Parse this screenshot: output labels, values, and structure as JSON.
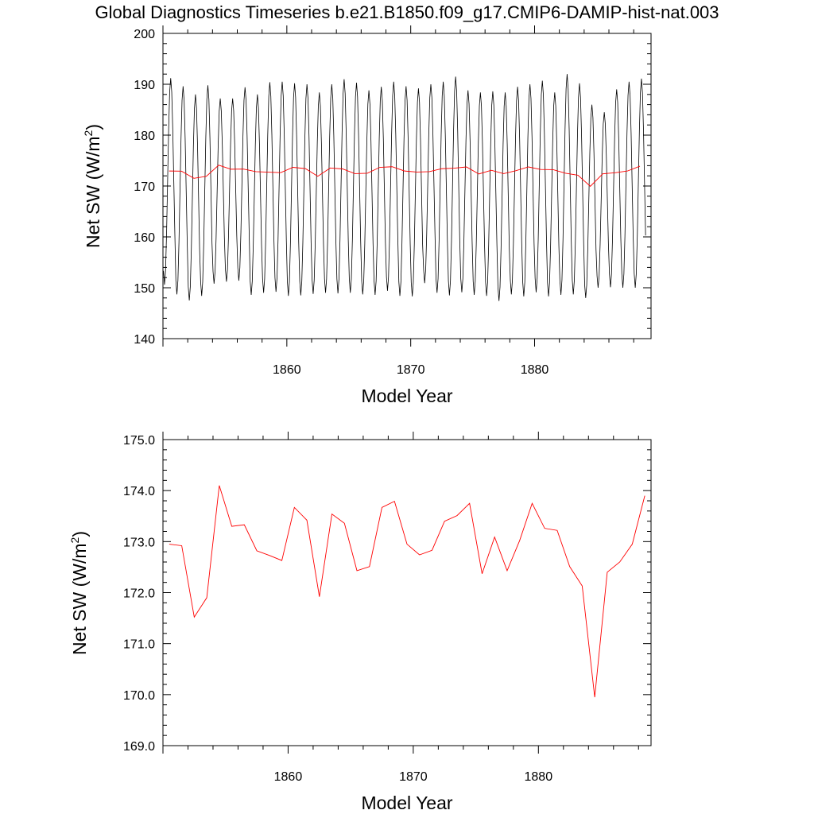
{
  "title": "Global Diagnostics Timeseries b.e21.B1850.f09_g17.CMIP6-DAMIP-hist-nat.003",
  "chart_data": [
    {
      "type": "line",
      "xlabel": "Model Year",
      "ylabel": "Net SW (W/m",
      "ylabel_sup": "2",
      "ylabel_close": ")",
      "xlim": [
        1850.0,
        1889.4
      ],
      "ylim": [
        140,
        200
      ],
      "x_major_ticks": [
        1860,
        1870,
        1880
      ],
      "x_tick_labels": [
        "1860",
        "1870",
        "1880"
      ],
      "y_major_ticks": [
        140,
        150,
        160,
        170,
        180,
        190,
        200
      ],
      "y_tick_labels": [
        "140",
        "150",
        "160",
        "170",
        "180",
        "190",
        "200"
      ],
      "series": [
        {
          "color": "#000000",
          "kind": "monthly seasonal cycle",
          "years": [
            1850,
            1851,
            1852,
            1853,
            1854,
            1855,
            1856,
            1857,
            1858,
            1859,
            1860,
            1861,
            1862,
            1863,
            1864,
            1865,
            1866,
            1867,
            1868,
            1869,
            1870,
            1871,
            1872,
            1873,
            1874,
            1875,
            1876,
            1877,
            1878,
            1879,
            1880,
            1881,
            1882,
            1883,
            1884,
            1885,
            1886,
            1887,
            1888
          ],
          "annual_max": [
            191.2,
            189.6,
            188.0,
            189.8,
            187.2,
            187.2,
            189.4,
            188.0,
            190.4,
            190.5,
            190.2,
            190.0,
            188.4,
            190.0,
            191.0,
            190.3,
            188.8,
            189.5,
            190.5,
            189.6,
            189.2,
            190.0,
            190.5,
            191.5,
            188.8,
            188.4,
            188.6,
            188.4,
            189.5,
            190.0,
            190.7,
            188.4,
            192.0,
            190.2,
            186.0,
            184.5,
            189.0,
            190.5,
            191.1
          ],
          "annual_min": [
            150.6,
            148.7,
            147.5,
            148.4,
            150.8,
            151.2,
            151.4,
            148.6,
            149.0,
            149.2,
            148.4,
            148.5,
            148.8,
            149.0,
            148.9,
            149.0,
            148.7,
            148.6,
            149.4,
            148.4,
            148.3,
            150.9,
            149.0,
            148.5,
            149.1,
            148.6,
            148.4,
            147.4,
            148.7,
            148.3,
            149.1,
            148.3,
            148.6,
            148.7,
            148.0,
            150.0,
            150.1,
            150.0,
            150.0
          ]
        },
        {
          "color": "#ff0000",
          "kind": "annual mean",
          "x": [
            1850.5,
            1851.5,
            1852.5,
            1853.5,
            1854.5,
            1855.5,
            1856.5,
            1857.5,
            1858.5,
            1859.5,
            1860.5,
            1861.5,
            1862.5,
            1863.5,
            1864.5,
            1865.5,
            1866.5,
            1867.5,
            1868.5,
            1869.5,
            1870.5,
            1871.5,
            1872.5,
            1873.5,
            1874.5,
            1875.5,
            1876.5,
            1877.5,
            1878.5,
            1879.5,
            1880.5,
            1881.5,
            1882.5,
            1883.5,
            1884.5,
            1885.5,
            1886.5,
            1887.5,
            1888.5
          ],
          "y": [
            172.95,
            172.92,
            171.52,
            171.9,
            174.1,
            173.3,
            173.33,
            172.82,
            172.73,
            172.63,
            173.67,
            173.42,
            171.92,
            173.54,
            173.36,
            172.43,
            172.51,
            173.67,
            173.79,
            172.95,
            172.74,
            172.83,
            173.4,
            173.51,
            173.75,
            172.37,
            173.09,
            172.43,
            173.02,
            173.75,
            173.26,
            173.22,
            172.51,
            172.13,
            169.95,
            172.4,
            172.6,
            172.95,
            173.9
          ]
        }
      ]
    },
    {
      "type": "line",
      "xlabel": "Model Year",
      "ylabel": "Net SW (W/m",
      "ylabel_sup": "2",
      "ylabel_close": ")",
      "xlim": [
        1850.0,
        1889.0
      ],
      "ylim": [
        169.0,
        175.0
      ],
      "x_major_ticks": [
        1860,
        1870,
        1880
      ],
      "x_tick_labels": [
        "1860",
        "1870",
        "1880"
      ],
      "y_major_ticks": [
        169,
        170,
        171,
        172,
        173,
        174,
        175
      ],
      "y_tick_labels": [
        "169.0",
        "170.0",
        "171.0",
        "172.0",
        "173.0",
        "174.0",
        "175.0"
      ],
      "series": [
        {
          "color": "#ff0000",
          "kind": "annual mean",
          "x": [
            1850.5,
            1851.5,
            1852.5,
            1853.5,
            1854.5,
            1855.5,
            1856.5,
            1857.5,
            1858.5,
            1859.5,
            1860.5,
            1861.5,
            1862.5,
            1863.5,
            1864.5,
            1865.5,
            1866.5,
            1867.5,
            1868.5,
            1869.5,
            1870.5,
            1871.5,
            1872.5,
            1873.5,
            1874.5,
            1875.5,
            1876.5,
            1877.5,
            1878.5,
            1879.5,
            1880.5,
            1881.5,
            1882.5,
            1883.5,
            1884.5,
            1885.5,
            1886.5,
            1887.5,
            1888.5
          ],
          "y": [
            172.95,
            172.92,
            171.52,
            171.9,
            174.1,
            173.3,
            173.33,
            172.82,
            172.73,
            172.63,
            173.67,
            173.42,
            171.92,
            173.54,
            173.36,
            172.43,
            172.51,
            173.67,
            173.79,
            172.95,
            172.74,
            172.83,
            173.4,
            173.51,
            173.75,
            172.37,
            173.09,
            172.43,
            173.02,
            173.75,
            173.26,
            173.22,
            172.51,
            172.13,
            169.95,
            172.4,
            172.6,
            172.95,
            173.9
          ]
        }
      ]
    }
  ]
}
